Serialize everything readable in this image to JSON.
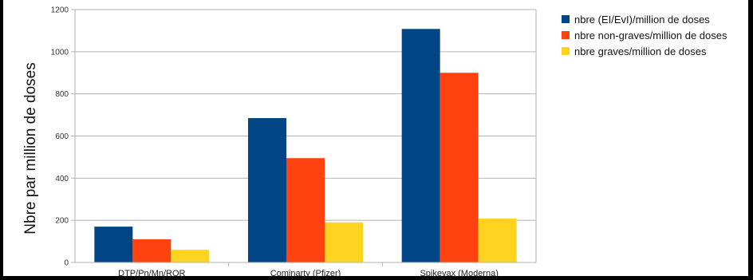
{
  "chart_data": {
    "type": "bar",
    "title": "",
    "xlabel": "",
    "ylabel": "Nbre par million de doses",
    "categories": [
      "DTP/Pn/Mn/ROR",
      "Cominarty (Pfizer)",
      "Spikevax (Moderna)"
    ],
    "series": [
      {
        "name": "nbre (EI/EvI)/million de doses",
        "color": "#004586",
        "values": [
          170,
          685,
          1108
        ]
      },
      {
        "name": "nbre non-graves/million de doses",
        "color": "#ff420e",
        "values": [
          110,
          495,
          900
        ]
      },
      {
        "name": "nbre graves/million de doses",
        "color": "#ffd320",
        "values": [
          60,
          190,
          208
        ]
      }
    ],
    "ylim": [
      0,
      1200
    ],
    "yticks": [
      0,
      200,
      400,
      600,
      800,
      1000,
      1200
    ],
    "grid": true,
    "legend_position": "right"
  }
}
